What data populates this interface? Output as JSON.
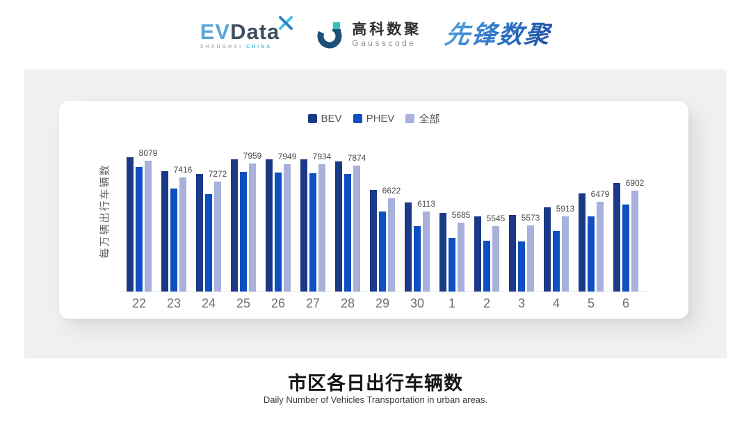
{
  "header": {
    "evdata": {
      "ev": "EV",
      "data": "Data",
      "sub1": "SHANGHAI",
      "sub2": "CHINA"
    },
    "gausscode": {
      "cn": "高科数聚",
      "en": "Gausscode"
    },
    "xianfeng": {
      "text": "先锋数聚"
    }
  },
  "chart": {
    "legend": [
      {
        "label": "BEV"
      },
      {
        "label": "PHEV"
      },
      {
        "label": "全部"
      }
    ],
    "y_axis_name": "每万辆出行车辆数"
  },
  "chart_data": {
    "type": "bar",
    "title": "市区各日出行车辆数",
    "categories": [
      "22",
      "23",
      "24",
      "25",
      "26",
      "27",
      "28",
      "29",
      "30",
      "1",
      "2",
      "3",
      "4",
      "5",
      "6"
    ],
    "series": [
      {
        "name": "BEV",
        "color": "#1a3a87",
        "values": [
          8210,
          7670,
          7560,
          8140,
          8120,
          8120,
          8050,
          6930,
          6460,
          6050,
          5920,
          5970,
          6260,
          6800,
          7220
        ]
      },
      {
        "name": "PHEV",
        "color": "#0e4fc1",
        "values": [
          7830,
          7000,
          6780,
          7630,
          7620,
          7580,
          7560,
          6100,
          5540,
          5070,
          4960,
          4940,
          5340,
          5920,
          6370
        ]
      },
      {
        "name": "全部",
        "color": "#a7b1dc",
        "values": [
          8079,
          7416,
          7272,
          7959,
          7949,
          7934,
          7874,
          6622,
          6113,
          5685,
          5545,
          5573,
          5913,
          6479,
          6902
        ]
      }
    ],
    "data_labels": [
      8079,
      7416,
      7272,
      7959,
      7949,
      7934,
      7874,
      6622,
      6113,
      5685,
      5545,
      5573,
      5913,
      6479,
      6902
    ],
    "labeled_series": "全部",
    "xlabel": "",
    "ylabel": "每万辆出行车辆数",
    "ylim": [
      3000,
      8400
    ],
    "grid": false,
    "legend_position": "top-center"
  },
  "footer": {
    "title": "市区各日出行车辆数",
    "subtitle": "Daily Number of Vehicles Transportation in urban areas."
  }
}
